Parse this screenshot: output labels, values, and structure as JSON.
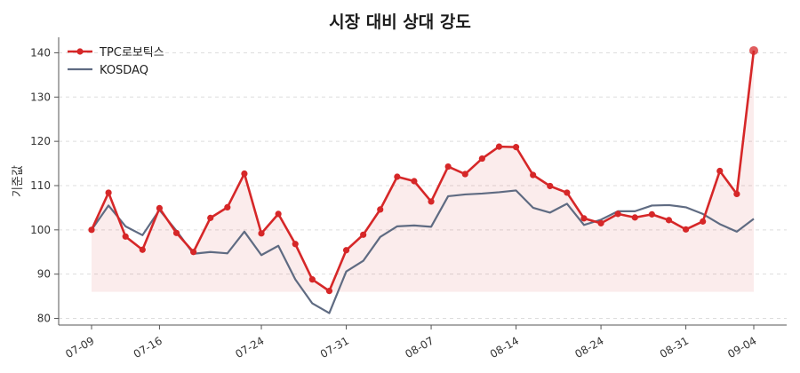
{
  "chart_data": {
    "type": "line",
    "title": "시장 대비 상대 강도",
    "xlabel": "",
    "ylabel": "기준값",
    "ylim": [
      78.5,
      143.5
    ],
    "yticks": [
      80,
      90,
      100,
      110,
      120,
      130,
      140
    ],
    "x_tick_labels": [
      "07-09",
      "07-16",
      "07-24",
      "07-31",
      "08-07",
      "08-14",
      "08-24",
      "08-31",
      "09-04"
    ],
    "x_tick_index": [
      0,
      4,
      10,
      15,
      20,
      25,
      30,
      35,
      39
    ],
    "grid": "horizontal-dashed",
    "legend_position": "top-left",
    "series": [
      {
        "name": "TPC로보틱스",
        "color": "#d62728",
        "marker": "circle",
        "fill": true,
        "fill_base": 86,
        "values": [
          100.0,
          108.4,
          98.5,
          95.5,
          104.9,
          99.3,
          95.0,
          102.7,
          105.1,
          112.7,
          99.2,
          103.6,
          96.8,
          88.8,
          86.2,
          95.4,
          98.9,
          104.6,
          112.0,
          111.0,
          106.4,
          114.3,
          112.6,
          116.1,
          118.8,
          118.7,
          112.4,
          109.9,
          108.4,
          102.6,
          101.5,
          103.6,
          102.8,
          103.5,
          102.2,
          100.1,
          101.9,
          113.3,
          108.1,
          140.5
        ]
      },
      {
        "name": "KOSDAQ",
        "color": "#5f6b82",
        "marker": "none",
        "fill": false,
        "values": [
          100.0,
          105.5,
          100.8,
          98.8,
          104.5,
          99.8,
          94.6,
          95.0,
          94.7,
          99.6,
          94.3,
          96.4,
          88.8,
          83.4,
          81.2,
          90.6,
          93.0,
          98.4,
          100.8,
          101.0,
          100.7,
          107.6,
          108.0,
          108.2,
          108.5,
          108.9,
          105.0,
          103.9,
          105.9,
          101.1,
          102.3,
          104.2,
          104.2,
          105.5,
          105.6,
          105.1,
          103.6,
          101.3,
          99.6,
          102.5
        ]
      }
    ]
  }
}
